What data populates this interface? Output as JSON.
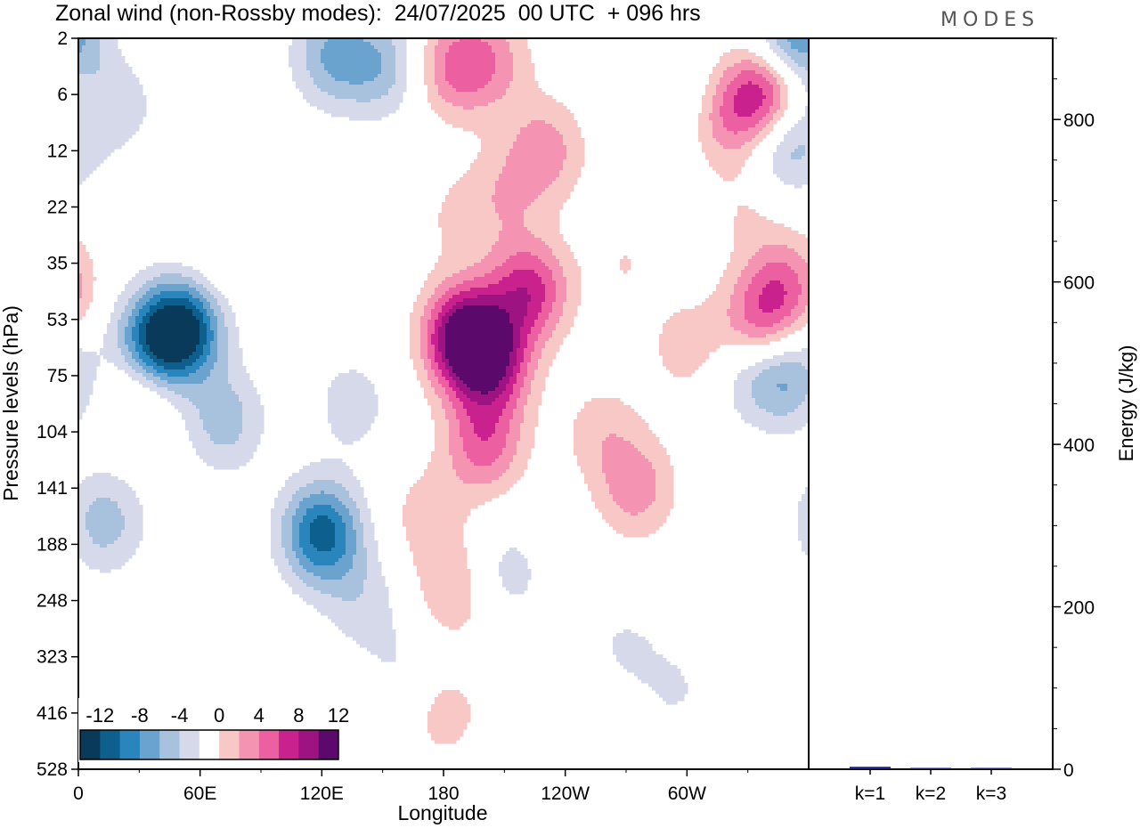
{
  "title": "Zonal wind (non-Rossby modes):  24/07/2025  00 UTC  + 096 hrs",
  "brand": "MODES",
  "colors": {
    "neg": [
      "#0a3a5a",
      "#0d5f8d",
      "#2a85bd",
      "#6aa3cd",
      "#a8c1dc",
      "#d5d9ea"
    ],
    "zero": "#ffffff",
    "pos": [
      "#f8c8c7",
      "#f593b3",
      "#ec5fa0",
      "#c9228e",
      "#9e1382",
      "#5b0a6b"
    ],
    "bar": "#1a1a8c"
  },
  "chart_data": [
    {
      "type": "heatmap",
      "xlabel": "Longitude",
      "ylabel": "Pressure levels (hPa)",
      "x_ticks": [
        "0",
        "60E",
        "120E",
        "180",
        "120W",
        "60W"
      ],
      "x_tick_degrees": [
        0,
        60,
        120,
        180,
        240,
        300
      ],
      "xlim": [
        0,
        360
      ],
      "y_ticks": [
        "2",
        "6",
        "12",
        "22",
        "35",
        "53",
        "75",
        "104",
        "141",
        "188",
        "248",
        "323",
        "416",
        "528"
      ],
      "colorbar": {
        "labels": [
          "-12",
          "-8",
          "-4",
          "0",
          "4",
          "8",
          "12"
        ],
        "levels": [
          -14,
          -12,
          -10,
          -8,
          -6,
          -4,
          -2,
          2,
          4,
          6,
          8,
          10,
          12,
          14
        ]
      },
      "features": [
        {
          "lon": 52,
          "level": 5.1,
          "value": -15
        },
        {
          "lon": 36,
          "level": 5.5,
          "value": -10
        },
        {
          "lon": 72,
          "level": 6.8,
          "value": -5
        },
        {
          "lon": 13,
          "level": 8.6,
          "value": -5
        },
        {
          "lon": 120,
          "level": 8.8,
          "value": -11
        },
        {
          "lon": 140,
          "level": 10.0,
          "value": -3
        },
        {
          "lon": 160,
          "level": 11.2,
          "value": -2
        },
        {
          "lon": 135,
          "level": 6.5,
          "value": -3
        },
        {
          "lon": 150,
          "level": 0.5,
          "value": -5
        },
        {
          "lon": 125,
          "level": 0.3,
          "value": -6
        },
        {
          "lon": 352,
          "level": 0.1,
          "value": -9
        },
        {
          "lon": 348,
          "level": 1.8,
          "value": -7
        },
        {
          "lon": 20,
          "level": 1.2,
          "value": -3
        },
        {
          "lon": 300,
          "level": 1.0,
          "value": -2
        },
        {
          "lon": 350,
          "level": 6.0,
          "value": -6
        },
        {
          "lon": 332,
          "level": 5.8,
          "value": -5
        },
        {
          "lon": 210,
          "level": 5.5,
          "value": -3
        },
        {
          "lon": 210,
          "level": 9.5,
          "value": -3
        },
        {
          "lon": 270,
          "level": 10.8,
          "value": -2
        },
        {
          "lon": 235,
          "level": 11.0,
          "value": -2
        },
        {
          "lon": 295,
          "level": 11.6,
          "value": -2
        },
        {
          "lon": 190,
          "level": 5.3,
          "value": 13
        },
        {
          "lon": 205,
          "level": 5.7,
          "value": 12
        },
        {
          "lon": 222,
          "level": 4.5,
          "value": 9
        },
        {
          "lon": 200,
          "level": 7.2,
          "value": 7
        },
        {
          "lon": 185,
          "level": 9.8,
          "value": 4
        },
        {
          "lon": 180,
          "level": 12.0,
          "value": 3
        },
        {
          "lon": 172,
          "level": 8.5,
          "value": 3
        },
        {
          "lon": 275,
          "level": 8.0,
          "value": 5
        },
        {
          "lon": 258,
          "level": 7.0,
          "value": 3
        },
        {
          "lon": 300,
          "level": 5.5,
          "value": 3
        },
        {
          "lon": 335,
          "level": 5.2,
          "value": 8
        },
        {
          "lon": 348,
          "level": 4.4,
          "value": 6
        },
        {
          "lon": 340,
          "level": 1.0,
          "value": 11
        },
        {
          "lon": 320,
          "level": 1.4,
          "value": 5
        },
        {
          "lon": 230,
          "level": 2.0,
          "value": 5
        },
        {
          "lon": 210,
          "level": 2.8,
          "value": 3
        },
        {
          "lon": 185,
          "level": 3.2,
          "value": 2
        },
        {
          "lon": 185,
          "level": 0.5,
          "value": 6
        },
        {
          "lon": 205,
          "level": 0.4,
          "value": 4
        },
        {
          "lon": 30,
          "level": 6.2,
          "value": 5
        },
        {
          "lon": 50,
          "level": 5.0,
          "value": 3
        },
        {
          "lon": 65,
          "level": 4.2,
          "value": 2
        },
        {
          "lon": 230,
          "level": 11.5,
          "value": 3
        },
        {
          "lon": 330,
          "level": 3.0,
          "value": 2
        },
        {
          "lon": 270,
          "level": 4.0,
          "value": 2
        },
        {
          "lon": 80,
          "level": 12.0,
          "value": 2
        }
      ]
    },
    {
      "type": "bar",
      "categories": [
        "k=1",
        "k=2",
        "k=3"
      ],
      "values": [
        3,
        1,
        1
      ],
      "ylabel": "Energy (J/kg)",
      "y_ticks": [
        "0",
        "200",
        "400",
        "600",
        "800"
      ],
      "ylim": [
        0,
        900
      ]
    }
  ]
}
